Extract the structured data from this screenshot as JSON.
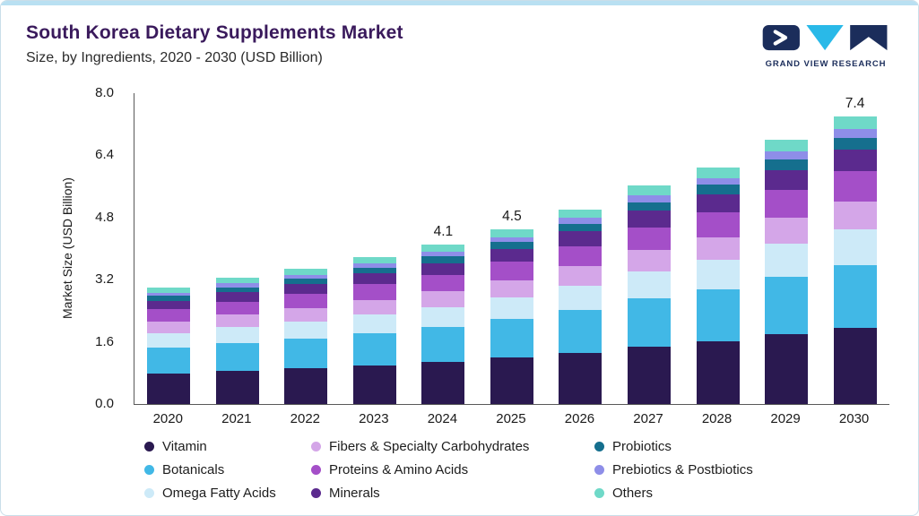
{
  "header": {
    "title": "South Korea Dietary Supplements Market",
    "subtitle": "Size, by Ingredients, 2020 - 2030 (USD Billion)",
    "logo_text": "GRAND VIEW RESEARCH"
  },
  "colors": {
    "accent_top": "#b9e0f2",
    "card_border": "#c9dee9",
    "title": "#3a1a5c",
    "logo_navy": "#1b2d5b",
    "logo_cyan": "#29b9e8",
    "axis": "#595959"
  },
  "chart_data": {
    "type": "bar",
    "stacked": true,
    "title": "South Korea Dietary Supplements Market",
    "subtitle": "Size, by Ingredients, 2020 - 2030 (USD Billion)",
    "ylabel": "Market Size (USD Billion)",
    "ylim": [
      0,
      8.0
    ],
    "yticks": [
      "8.0",
      "6.4",
      "4.8",
      "3.2",
      "1.6",
      "0.0"
    ],
    "grid": false,
    "legend_position": "bottom",
    "categories": [
      "2020",
      "2021",
      "2022",
      "2023",
      "2024",
      "2025",
      "2026",
      "2027",
      "2028",
      "2029",
      "2030"
    ],
    "totals": [
      3.0,
      3.25,
      3.49,
      3.79,
      4.1,
      4.5,
      5.01,
      5.62,
      6.09,
      6.8,
      7.4
    ],
    "bar_labels": [
      "",
      "",
      "",
      "",
      "4.1",
      "4.5",
      "",
      "",
      "",
      "",
      "7.4"
    ],
    "series": [
      {
        "name": "Vitamin",
        "color": "#2a1950",
        "values": [
          0.79,
          0.86,
          0.92,
          1.0,
          1.08,
          1.19,
          1.32,
          1.48,
          1.61,
          1.79,
          1.95
        ]
      },
      {
        "name": "Botanicals",
        "color": "#41b8e6",
        "values": [
          0.66,
          0.71,
          0.76,
          0.83,
          0.9,
          0.99,
          1.1,
          1.23,
          1.33,
          1.49,
          1.62
        ]
      },
      {
        "name": "Omega Fatty Acids",
        "color": "#cdeaf8",
        "values": [
          0.38,
          0.41,
          0.44,
          0.48,
          0.52,
          0.57,
          0.63,
          0.7,
          0.77,
          0.85,
          0.93
        ]
      },
      {
        "name": "Fibers & Specialty Carbohydrates",
        "color": "#d4a6e8",
        "values": [
          0.29,
          0.32,
          0.34,
          0.37,
          0.4,
          0.44,
          0.49,
          0.55,
          0.59,
          0.66,
          0.72
        ]
      },
      {
        "name": "Proteins & Amino Acids",
        "color": "#a44fc8",
        "values": [
          0.32,
          0.34,
          0.37,
          0.4,
          0.43,
          0.47,
          0.53,
          0.59,
          0.64,
          0.72,
          0.78
        ]
      },
      {
        "name": "Minerals",
        "color": "#5b2a8e",
        "values": [
          0.22,
          0.24,
          0.26,
          0.28,
          0.3,
          0.33,
          0.37,
          0.42,
          0.45,
          0.51,
          0.55
        ]
      },
      {
        "name": "Probiotics",
        "color": "#156f8e",
        "values": [
          0.12,
          0.13,
          0.14,
          0.15,
          0.17,
          0.18,
          0.2,
          0.23,
          0.25,
          0.28,
          0.3
        ]
      },
      {
        "name": "Prebiotics & Postbiotics",
        "color": "#8e8ee8",
        "values": [
          0.09,
          0.1,
          0.1,
          0.11,
          0.12,
          0.13,
          0.15,
          0.17,
          0.18,
          0.2,
          0.22
        ]
      },
      {
        "name": "Others",
        "color": "#6fd9c8",
        "values": [
          0.13,
          0.14,
          0.16,
          0.17,
          0.18,
          0.2,
          0.22,
          0.25,
          0.27,
          0.3,
          0.33
        ]
      }
    ],
    "legend": [
      {
        "label": "Vitamin",
        "color": "#2a1950"
      },
      {
        "label": "Fibers & Specialty Carbohydrates",
        "color": "#d4a6e8"
      },
      {
        "label": "Probiotics",
        "color": "#156f8e"
      },
      {
        "label": "Botanicals",
        "color": "#41b8e6"
      },
      {
        "label": "Proteins & Amino Acids",
        "color": "#a44fc8"
      },
      {
        "label": "Prebiotics & Postbiotics",
        "color": "#8e8ee8"
      },
      {
        "label": "Omega Fatty Acids",
        "color": "#cdeaf8"
      },
      {
        "label": "Minerals",
        "color": "#5b2a8e"
      },
      {
        "label": "Others",
        "color": "#6fd9c8"
      }
    ]
  }
}
